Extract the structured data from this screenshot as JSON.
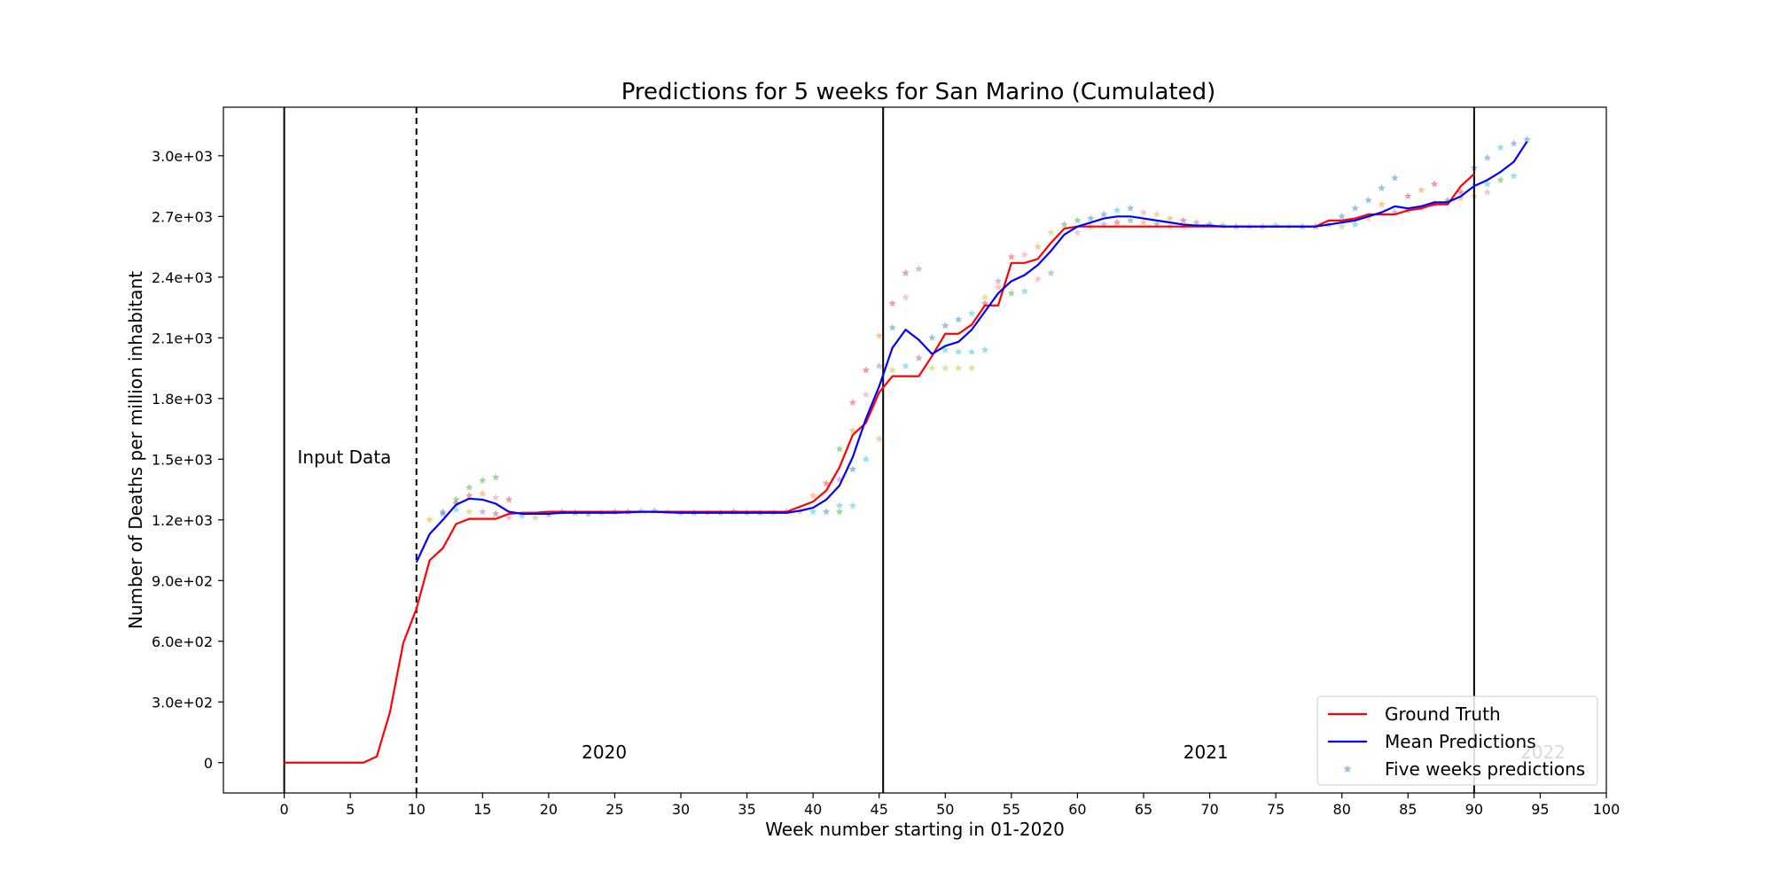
{
  "chart_data": {
    "type": "line",
    "title": "Predictions for 5 weeks for San Marino (Cumulated)",
    "xlabel": "Week number starting in 01-2020",
    "ylabel": "Number of Deaths per million inhabitant",
    "xlim": [
      -4.6,
      100
    ],
    "ylim": [
      -150,
      3240
    ],
    "x_ticks": [
      0,
      5,
      10,
      15,
      20,
      25,
      30,
      35,
      40,
      45,
      50,
      55,
      60,
      65,
      70,
      75,
      80,
      85,
      90,
      95,
      100
    ],
    "y_ticks": [
      0,
      300,
      600,
      900,
      1200,
      1500,
      1800,
      2100,
      2400,
      2700,
      3000
    ],
    "y_tick_labels": [
      "0",
      "3.0e+02",
      "6.0e+02",
      "9.0e+02",
      "1.2e+03",
      "1.5e+03",
      "1.8e+03",
      "2.1e+03",
      "2.4e+03",
      "2.7e+03",
      "3.0e+03"
    ],
    "grid": false,
    "legend_position": "bottom-right",
    "legend": [
      {
        "label": "Ground Truth",
        "color": "#ff0000",
        "kind": "line"
      },
      {
        "label": "Mean Predictions",
        "color": "#0000ff",
        "kind": "line"
      },
      {
        "label": "Five weeks predictions",
        "color": "#7fb2d9",
        "kind": "star"
      }
    ],
    "annotations": [
      {
        "text": "Input Data",
        "x": 1,
        "y": 1480
      },
      {
        "text": "2020",
        "x": 22.5,
        "y": 20
      },
      {
        "text": "2021",
        "x": 68,
        "y": 20
      },
      {
        "text": "2022",
        "x": 93.5,
        "y": 20
      }
    ],
    "vertical_lines": [
      {
        "x": 0,
        "style": "solid"
      },
      {
        "x": 10,
        "style": "dashed"
      },
      {
        "x": 45.3,
        "style": "solid"
      },
      {
        "x": 90,
        "style": "solid"
      }
    ],
    "series": [
      {
        "name": "Ground Truth",
        "color": "#ff0000",
        "x": [
          0,
          1,
          2,
          3,
          4,
          5,
          6,
          7,
          8,
          9,
          10,
          11,
          12,
          13,
          14,
          15,
          16,
          17,
          18,
          19,
          20,
          21,
          22,
          23,
          24,
          25,
          26,
          27,
          28,
          29,
          30,
          31,
          32,
          33,
          34,
          35,
          36,
          37,
          38,
          39,
          40,
          41,
          42,
          43,
          44,
          45,
          46,
          47,
          48,
          49,
          50,
          51,
          52,
          53,
          54,
          55,
          56,
          57,
          58,
          59,
          60,
          61,
          62,
          63,
          64,
          65,
          66,
          67,
          68,
          69,
          70,
          71,
          72,
          73,
          74,
          75,
          76,
          77,
          78,
          79,
          80,
          81,
          82,
          83,
          84,
          85,
          86,
          87,
          88,
          89,
          90
        ],
        "y": [
          0,
          0,
          0,
          0,
          0,
          0,
          0,
          30,
          250,
          590,
          760,
          1000,
          1060,
          1180,
          1205,
          1205,
          1205,
          1230,
          1235,
          1235,
          1240,
          1240,
          1240,
          1240,
          1240,
          1240,
          1240,
          1240,
          1240,
          1240,
          1240,
          1240,
          1240,
          1240,
          1240,
          1240,
          1240,
          1240,
          1240,
          1265,
          1290,
          1345,
          1460,
          1620,
          1680,
          1830,
          1910,
          1910,
          1910,
          2010,
          2120,
          2120,
          2165,
          2260,
          2260,
          2470,
          2470,
          2490,
          2570,
          2640,
          2650,
          2650,
          2650,
          2650,
          2650,
          2650,
          2650,
          2650,
          2650,
          2650,
          2650,
          2650,
          2650,
          2650,
          2650,
          2650,
          2650,
          2650,
          2650,
          2680,
          2680,
          2690,
          2710,
          2710,
          2710,
          2730,
          2740,
          2760,
          2760,
          2850,
          2910
        ]
      },
      {
        "name": "Mean Predictions",
        "color": "#0000ff",
        "x": [
          10,
          11,
          12,
          13,
          14,
          15,
          16,
          17,
          18,
          19,
          20,
          21,
          22,
          23,
          24,
          25,
          26,
          27,
          28,
          29,
          30,
          31,
          32,
          33,
          34,
          35,
          36,
          37,
          38,
          39,
          40,
          41,
          42,
          43,
          44,
          45,
          46,
          47,
          48,
          49,
          50,
          51,
          52,
          53,
          54,
          55,
          56,
          57,
          58,
          59,
          60,
          61,
          62,
          63,
          64,
          65,
          66,
          67,
          68,
          69,
          70,
          71,
          72,
          73,
          74,
          75,
          76,
          77,
          78,
          79,
          80,
          81,
          82,
          83,
          84,
          85,
          86,
          87,
          88,
          89,
          90,
          91,
          92,
          93,
          94
        ],
        "y": [
          990,
          1130,
          1200,
          1275,
          1305,
          1300,
          1280,
          1240,
          1230,
          1230,
          1230,
          1235,
          1235,
          1235,
          1235,
          1235,
          1237,
          1240,
          1240,
          1237,
          1235,
          1235,
          1235,
          1235,
          1235,
          1235,
          1235,
          1235,
          1235,
          1245,
          1260,
          1300,
          1370,
          1510,
          1700,
          1860,
          2050,
          2140,
          2090,
          2020,
          2060,
          2080,
          2140,
          2230,
          2320,
          2380,
          2410,
          2460,
          2530,
          2610,
          2650,
          2670,
          2690,
          2700,
          2700,
          2690,
          2680,
          2670,
          2660,
          2655,
          2655,
          2650,
          2650,
          2650,
          2650,
          2650,
          2650,
          2650,
          2650,
          2660,
          2670,
          2680,
          2700,
          2720,
          2750,
          2740,
          2750,
          2770,
          2770,
          2800,
          2850,
          2880,
          2920,
          2970,
          3070
        ]
      }
    ],
    "star_points": [
      [
        11,
        1200,
        "#ff7f0e"
      ],
      [
        12,
        1240,
        "#9467bd"
      ],
      [
        13,
        1300,
        "#2ca02c"
      ],
      [
        14,
        1360,
        "#2ca02c"
      ],
      [
        15,
        1395,
        "#2ca02c"
      ],
      [
        16,
        1410,
        "#2ca02c"
      ],
      [
        12,
        1230,
        "#1f77b4"
      ],
      [
        13,
        1280,
        "#d62728"
      ],
      [
        14,
        1320,
        "#d62728"
      ],
      [
        15,
        1330,
        "#ff7f0e"
      ],
      [
        16,
        1310,
        "#e377c2"
      ],
      [
        17,
        1300,
        "#d62728"
      ],
      [
        13,
        1250,
        "#17becf"
      ],
      [
        14,
        1240,
        "#bcbd22"
      ],
      [
        15,
        1240,
        "#9467bd"
      ],
      [
        16,
        1230,
        "#8c564b"
      ],
      [
        17,
        1210,
        "#e377c2"
      ],
      [
        18,
        1220,
        "#17becf"
      ],
      [
        19,
        1210,
        "#bcbd22"
      ],
      [
        20,
        1225,
        "#9467bd"
      ],
      [
        21,
        1240,
        "#1f77b4"
      ],
      [
        22,
        1235,
        "#d62728"
      ],
      [
        23,
        1230,
        "#2ca02c"
      ],
      [
        24,
        1235,
        "#ff7f0e"
      ],
      [
        25,
        1240,
        "#9467bd"
      ],
      [
        26,
        1240,
        "#8c564b"
      ],
      [
        27,
        1245,
        "#e377c2"
      ],
      [
        28,
        1245,
        "#7f7f7f"
      ],
      [
        29,
        1240,
        "#bcbd22"
      ],
      [
        30,
        1235,
        "#17becf"
      ],
      [
        31,
        1235,
        "#1f77b4"
      ],
      [
        32,
        1235,
        "#ff7f0e"
      ],
      [
        33,
        1235,
        "#2ca02c"
      ],
      [
        34,
        1240,
        "#d62728"
      ],
      [
        35,
        1235,
        "#9467bd"
      ],
      [
        36,
        1235,
        "#8c564b"
      ],
      [
        37,
        1235,
        "#e377c2"
      ],
      [
        38,
        1240,
        "#7f7f7f"
      ],
      [
        39,
        1240,
        "#bcbd22"
      ],
      [
        40,
        1240,
        "#17becf"
      ],
      [
        41,
        1240,
        "#1f77b4"
      ],
      [
        42,
        1240,
        "#2ca02c"
      ],
      [
        40,
        1320,
        "#ff7f0e"
      ],
      [
        41,
        1380,
        "#d62728"
      ],
      [
        42,
        1400,
        "#9467bd"
      ],
      [
        43,
        1450,
        "#1f77b4"
      ],
      [
        44,
        1500,
        "#17becf"
      ],
      [
        45,
        1600,
        "#ff7f0e"
      ],
      [
        42,
        1550,
        "#2ca02c"
      ],
      [
        43,
        1640,
        "#ff7f0e"
      ],
      [
        43,
        1780,
        "#d62728"
      ],
      [
        44,
        1940,
        "#d62728"
      ],
      [
        45,
        2110,
        "#ff7f0e"
      ],
      [
        46,
        2270,
        "#d62728"
      ],
      [
        47,
        2420,
        "#d62728"
      ],
      [
        48,
        2440,
        "#9467bd"
      ],
      [
        47,
        2300,
        "#e377c2"
      ],
      [
        46,
        2150,
        "#1f77b4"
      ],
      [
        45,
        1960,
        "#9467bd"
      ],
      [
        44,
        1820,
        "#e377c2"
      ],
      [
        46,
        1940,
        "#bcbd22"
      ],
      [
        47,
        1960,
        "#17becf"
      ],
      [
        48,
        2000,
        "#8c564b"
      ],
      [
        49,
        1950,
        "#bcbd22"
      ],
      [
        50,
        1950,
        "#bcbd22"
      ],
      [
        51,
        1950,
        "#bcbd22"
      ],
      [
        52,
        1950,
        "#bcbd22"
      ],
      [
        49,
        2100,
        "#1f77b4"
      ],
      [
        50,
        2160,
        "#1f77b4"
      ],
      [
        51,
        2190,
        "#1f77b4"
      ],
      [
        52,
        2220,
        "#17becf"
      ],
      [
        53,
        2270,
        "#d62728"
      ],
      [
        54,
        2350,
        "#ff7f0e"
      ],
      [
        50,
        2040,
        "#17becf"
      ],
      [
        51,
        2030,
        "#17becf"
      ],
      [
        52,
        2030,
        "#17becf"
      ],
      [
        53,
        2040,
        "#17becf"
      ],
      [
        43,
        1270,
        "#17becf"
      ],
      [
        42,
        1270,
        "#17becf"
      ],
      [
        53,
        2300,
        "#bcbd22"
      ],
      [
        54,
        2380,
        "#9467bd"
      ],
      [
        55,
        2500,
        "#d62728"
      ],
      [
        56,
        2510,
        "#e377c2"
      ],
      [
        57,
        2550,
        "#ff7f0e"
      ],
      [
        58,
        2620,
        "#bcbd22"
      ],
      [
        55,
        2320,
        "#2ca02c"
      ],
      [
        56,
        2330,
        "#17becf"
      ],
      [
        57,
        2390,
        "#e377c2"
      ],
      [
        58,
        2420,
        "#9467bd"
      ],
      [
        59,
        2660,
        "#2ca02c"
      ],
      [
        60,
        2680,
        "#2ca02c"
      ],
      [
        61,
        2690,
        "#1f77b4"
      ],
      [
        62,
        2710,
        "#1f77b4"
      ],
      [
        63,
        2730,
        "#17becf"
      ],
      [
        64,
        2740,
        "#1f77b4"
      ],
      [
        65,
        2720,
        "#e377c2"
      ],
      [
        66,
        2710,
        "#bcbd22"
      ],
      [
        67,
        2690,
        "#ff7f0e"
      ],
      [
        68,
        2680,
        "#d62728"
      ],
      [
        69,
        2670,
        "#9467bd"
      ],
      [
        70,
        2660,
        "#1f77b4"
      ],
      [
        71,
        2655,
        "#2ca02c"
      ],
      [
        72,
        2650,
        "#8c564b"
      ],
      [
        60,
        2620,
        "#e377c2"
      ],
      [
        61,
        2650,
        "#ff7f0e"
      ],
      [
        62,
        2660,
        "#9467bd"
      ],
      [
        63,
        2670,
        "#d62728"
      ],
      [
        64,
        2680,
        "#2ca02c"
      ],
      [
        65,
        2670,
        "#ff7f0e"
      ],
      [
        66,
        2660,
        "#1f77b4"
      ],
      [
        67,
        2650,
        "#17becf"
      ],
      [
        68,
        2650,
        "#bcbd22"
      ],
      [
        73,
        2650,
        "#e377c2"
      ],
      [
        74,
        2650,
        "#7f7f7f"
      ],
      [
        75,
        2655,
        "#17becf"
      ],
      [
        76,
        2650,
        "#bcbd22"
      ],
      [
        77,
        2650,
        "#1f77b4"
      ],
      [
        78,
        2650,
        "#d62728"
      ],
      [
        79,
        2660,
        "#9467bd"
      ],
      [
        80,
        2700,
        "#1f77b4"
      ],
      [
        81,
        2740,
        "#1f77b4"
      ],
      [
        82,
        2780,
        "#1f77b4"
      ],
      [
        83,
        2840,
        "#1f77b4"
      ],
      [
        84,
        2890,
        "#1f77b4"
      ],
      [
        83,
        2760,
        "#ff7f0e"
      ],
      [
        84,
        2720,
        "#9467bd"
      ],
      [
        85,
        2800,
        "#d62728"
      ],
      [
        86,
        2830,
        "#ff7f0e"
      ],
      [
        87,
        2860,
        "#d62728"
      ],
      [
        80,
        2650,
        "#bcbd22"
      ],
      [
        81,
        2660,
        "#17becf"
      ],
      [
        82,
        2690,
        "#bcbd22"
      ],
      [
        85,
        2730,
        "#2ca02c"
      ],
      [
        86,
        2740,
        "#17becf"
      ],
      [
        87,
        2760,
        "#8c564b"
      ],
      [
        88,
        2780,
        "#2ca02c"
      ],
      [
        89,
        2790,
        "#ff7f0e"
      ],
      [
        90,
        2800,
        "#bcbd22"
      ],
      [
        91,
        2820,
        "#e377c2"
      ],
      [
        90,
        2940,
        "#1f77b4"
      ],
      [
        91,
        2990,
        "#1f77b4"
      ],
      [
        92,
        3040,
        "#17becf"
      ],
      [
        93,
        3060,
        "#1f77b4"
      ],
      [
        94,
        3080,
        "#1f77b4"
      ],
      [
        91,
        2860,
        "#17becf"
      ],
      [
        92,
        2880,
        "#2ca02c"
      ],
      [
        93,
        2900,
        "#17becf"
      ],
      [
        89,
        2820,
        "#d62728"
      ],
      [
        88,
        2770,
        "#9467bd"
      ]
    ]
  }
}
